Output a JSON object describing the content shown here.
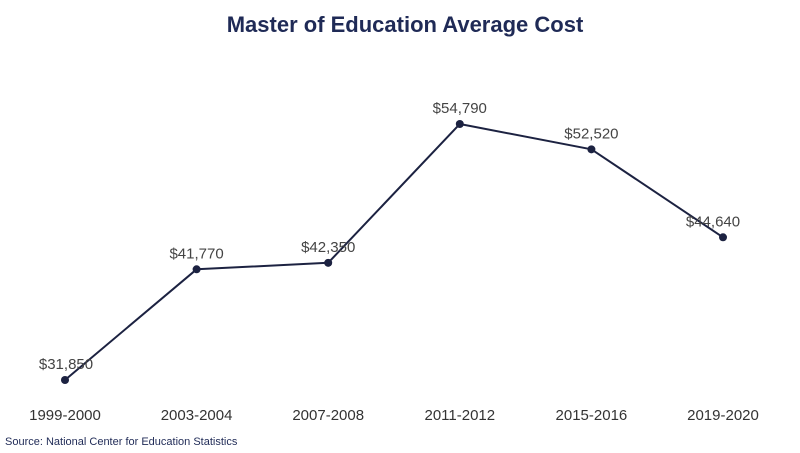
{
  "chart_data": {
    "type": "line",
    "title": "Master of Education Average Cost",
    "xlabel": "",
    "ylabel": "",
    "categories": [
      "1999-2000",
      "2003-2004",
      "2007-2008",
      "2011-2012",
      "2015-2016",
      "2019-2020"
    ],
    "series": [
      {
        "values": [
          31850,
          41770,
          42350,
          54790,
          52520,
          44640
        ],
        "labels": [
          "$31,850",
          "$41,770",
          "$42,350",
          "$54,790",
          "$52,520",
          "$44,640"
        ]
      }
    ],
    "ylim": [
      31850,
      54790
    ],
    "grid": false,
    "legend": "none",
    "line_color": "#1c2241",
    "source": "Source: National Center for Education Statistics"
  }
}
